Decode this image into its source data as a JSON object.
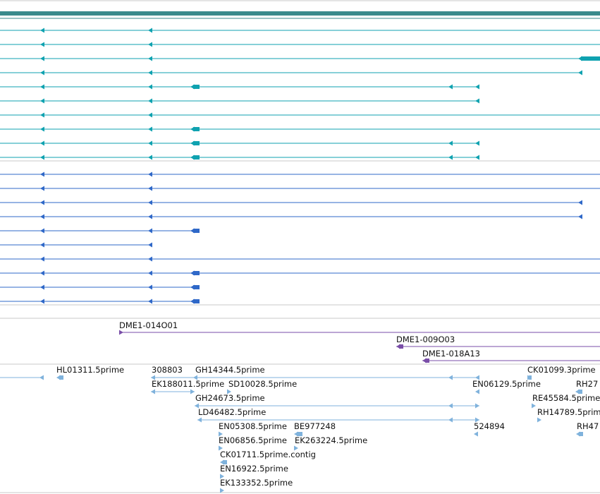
{
  "colors": {
    "top_bar": "#3a8a8c",
    "transcript_teal": "#0fa2b0",
    "transcript_blue": "#2f68c8",
    "clone_purple": "#7a4ea8",
    "est_lightblue": "#7fb2dc",
    "track_divider": "#c8c8c8"
  },
  "tracks": {
    "clones": {
      "labels": [
        "DME1-014O01",
        "DME1-009O03",
        "DME1-018A13"
      ]
    },
    "ests": {
      "labels": [
        "HL01311.5prime",
        "308803",
        "GH14344.5prime",
        "CK01099.3prime",
        "EK188011.5prime",
        "SD10028.5prime",
        "EN06129.5prime",
        "RH27",
        "GH24673.5prime",
        "RE45584.5prime",
        "LD46482.5prime",
        "RH14789.5prim",
        "EN05308.5prime",
        "BE977248",
        "524894",
        "RH47",
        "EN06856.5prime",
        "EK263224.5prime",
        "CK01711.5prime.contig",
        "EN16922.5prime",
        "EK133352.5prime"
      ]
    }
  }
}
